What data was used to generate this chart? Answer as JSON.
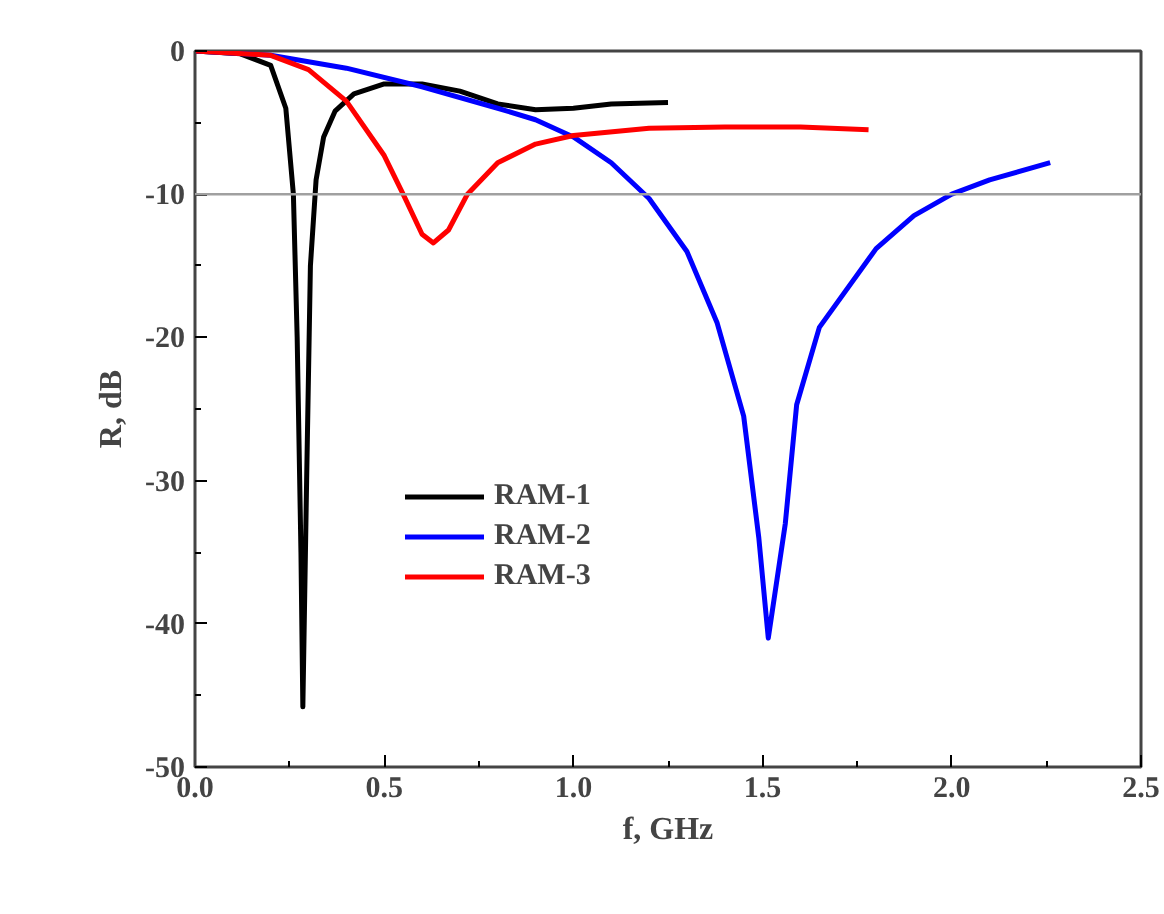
{
  "chart_data": {
    "type": "line",
    "xlabel": "f, GHz",
    "ylabel": "R, dB",
    "xlim": [
      0,
      2.5
    ],
    "xticks": [
      {
        "value": 0,
        "label": "0.0"
      },
      0.5,
      {
        "value": 1,
        "label": "1.0"
      },
      1.5,
      {
        "value": 2,
        "label": "2.0"
      },
      2.5
    ],
    "ylim": [
      -50,
      0
    ],
    "yticks": [
      -50,
      -40,
      -30,
      -20,
      -10,
      0
    ],
    "grid": false,
    "legend": "center left",
    "line_style": "solid",
    "marker": "none",
    "ref_lines": [
      {
        "axis": "y",
        "value": -10,
        "color": "#a0a0a0"
      }
    ],
    "series": [
      {
        "name": "RAM-1",
        "color": "#000000",
        "x": [
          0,
          0.12,
          0.2,
          0.24,
          0.26,
          0.27,
          0.28,
          0.285,
          0.295,
          0.305,
          0.32,
          0.34,
          0.37,
          0.42,
          0.5,
          0.6,
          0.7,
          0.8,
          0.9,
          1.0,
          1.1,
          1.25
        ],
        "values": [
          0,
          -0.2,
          -1,
          -4,
          -10,
          -20,
          -35,
          -45.8,
          -30,
          -15,
          -9,
          -6,
          -4.2,
          -3,
          -2.3,
          -2.3,
          -2.8,
          -3.7,
          -4.1,
          -4.0,
          -3.7,
          -3.6
        ]
      },
      {
        "name": "RAM-2",
        "color": "#0000ff",
        "x": [
          0,
          0.2,
          0.4,
          0.6,
          0.8,
          0.9,
          1.0,
          1.1,
          1.2,
          1.3,
          1.38,
          1.45,
          1.49,
          1.515,
          1.56,
          1.59,
          1.65,
          1.8,
          1.9,
          2.0,
          2.1,
          2.26
        ],
        "values": [
          0,
          -0.3,
          -1.2,
          -2.5,
          -4.0,
          -4.8,
          -6.0,
          -7.8,
          -10.3,
          -14,
          -19,
          -25.5,
          -34,
          -41,
          -33,
          -24.7,
          -19.3,
          -13.8,
          -11.5,
          -10.0,
          -9.0,
          -7.8
        ]
      },
      {
        "name": "RAM-3",
        "color": "#ff0000",
        "x": [
          0,
          0.2,
          0.3,
          0.4,
          0.5,
          0.55,
          0.6,
          0.63,
          0.67,
          0.72,
          0.8,
          0.9,
          1.0,
          1.2,
          1.4,
          1.6,
          1.78
        ],
        "values": [
          0,
          -0.3,
          -1.3,
          -3.5,
          -7.3,
          -10,
          -12.8,
          -13.4,
          -12.5,
          -10,
          -7.8,
          -6.5,
          -5.9,
          -5.4,
          -5.3,
          -5.3,
          -5.5
        ]
      }
    ]
  }
}
